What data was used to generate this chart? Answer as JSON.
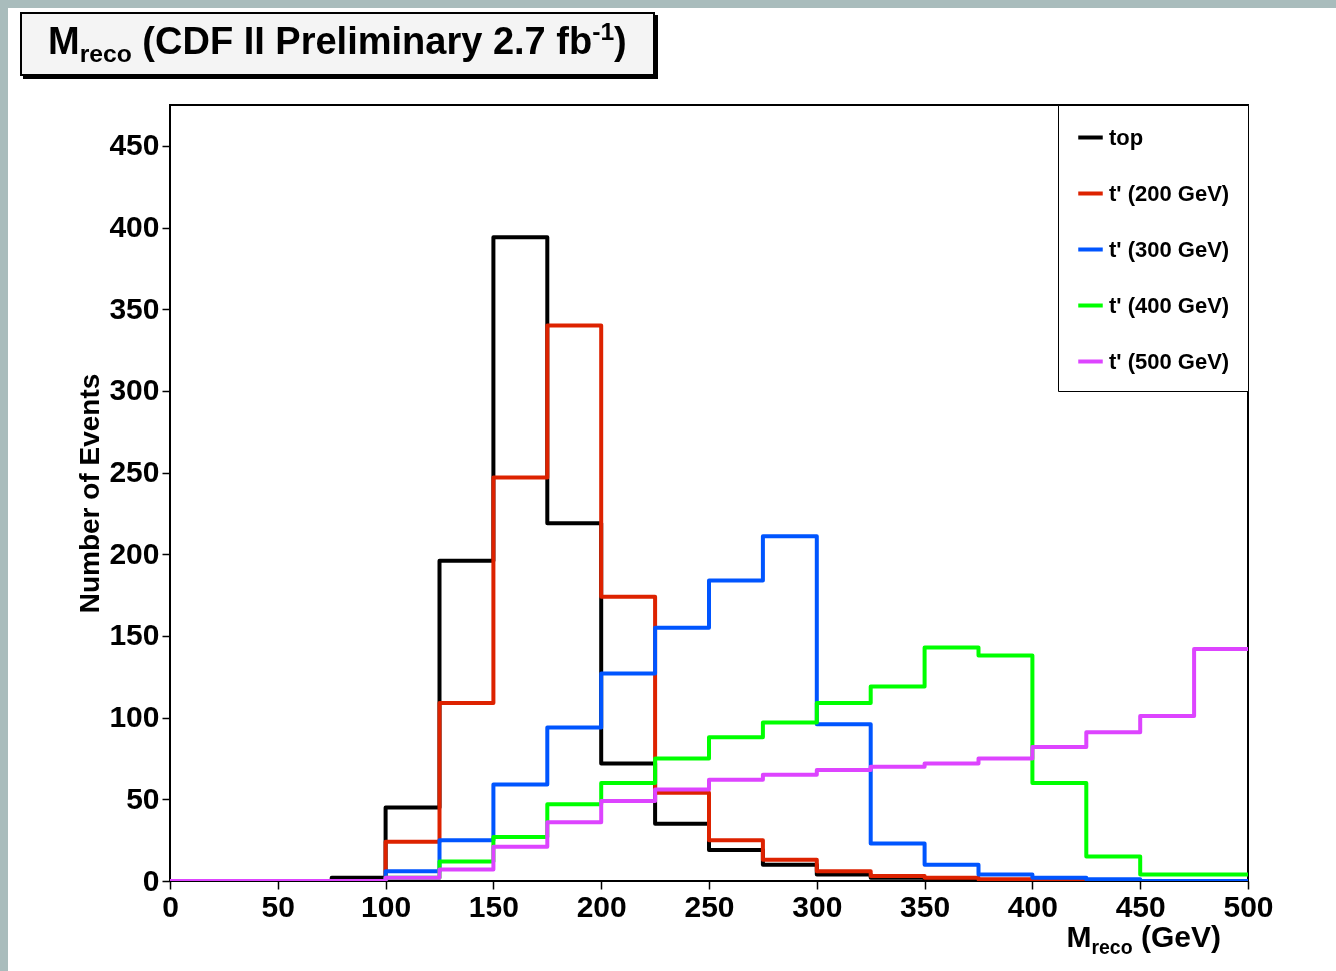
{
  "chart_data": {
    "type": "histogram",
    "title": "M$_{reco}$ (CDF II Preliminary 2.7 fb$^{-1}$)",
    "xlabel": "M$_{reco}$ (GeV)",
    "ylabel": "Number of Events",
    "bins": [
      0,
      25,
      50,
      75,
      100,
      125,
      150,
      175,
      200,
      225,
      250,
      275,
      300,
      325,
      350,
      375,
      400,
      425,
      450,
      475,
      500
    ],
    "series": [
      {
        "name": "top",
        "color": "#000000",
        "values": [
          0,
          0,
          0,
          2,
          45,
          196,
          394,
          219,
          72,
          35,
          19,
          10,
          4,
          2,
          1,
          0,
          0,
          0,
          0,
          0
        ]
      },
      {
        "name": "t' (200 GeV)",
        "color": "#dd2200",
        "values": [
          0,
          0,
          0,
          0,
          24,
          109,
          247,
          340,
          174,
          54,
          25,
          13,
          6,
          3,
          2,
          1,
          0,
          0,
          0,
          0
        ]
      },
      {
        "name": "t' (300 GeV)",
        "color": "#0055ff",
        "values": [
          0,
          0,
          0,
          0,
          6,
          25,
          59,
          94,
          127,
          155,
          184,
          211,
          96,
          23,
          10,
          4,
          2,
          1,
          0,
          0
        ]
      },
      {
        "name": "t' (400 GeV)",
        "color": "#00ff00",
        "values": [
          0,
          0,
          0,
          0,
          2,
          12,
          27,
          47,
          60,
          75,
          88,
          97,
          109,
          119,
          143,
          138,
          60,
          15,
          4,
          4
        ]
      },
      {
        "name": "t' (500 GeV)",
        "color": "#dd44ff",
        "values": [
          0,
          0,
          0,
          0,
          2,
          7,
          21,
          36,
          49,
          56,
          62,
          65,
          68,
          70,
          72,
          75,
          82,
          91,
          101,
          142
        ]
      }
    ],
    "xlim": [
      0,
      500
    ],
    "xticks": [
      0,
      50,
      100,
      150,
      200,
      250,
      300,
      350,
      400,
      450,
      500
    ],
    "ylim": [
      0,
      475
    ],
    "yticks": [
      0,
      50,
      100,
      150,
      200,
      250,
      300,
      350,
      400,
      450
    ],
    "grid": false,
    "legend": "top right",
    "line_style": "solid"
  }
}
